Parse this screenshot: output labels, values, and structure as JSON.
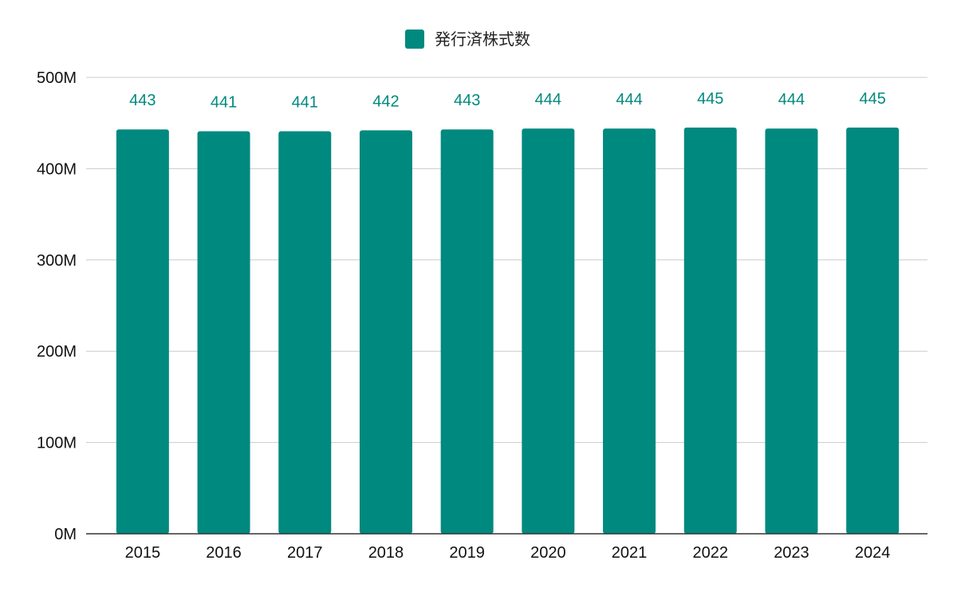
{
  "chart_data": {
    "type": "bar",
    "categories": [
      "2015",
      "2016",
      "2017",
      "2018",
      "2019",
      "2020",
      "2021",
      "2022",
      "2023",
      "2024"
    ],
    "series": [
      {
        "name": "発行済株式数",
        "values": [
          443,
          441,
          441,
          442,
          443,
          444,
          444,
          445,
          444,
          445
        ],
        "data_labels": [
          "443",
          "441",
          "441",
          "442",
          "443",
          "444",
          "444",
          "445",
          "444",
          "445"
        ],
        "color": "#00897f",
        "label_color": "#00897f"
      }
    ],
    "unit_multiplier": 1000000,
    "ylim": [
      0,
      500
    ],
    "y_ticks": [
      0,
      100,
      200,
      300,
      400,
      500
    ],
    "y_tick_labels": [
      "0M",
      "100M",
      "200M",
      "300M",
      "400M",
      "500M"
    ],
    "legend": {
      "position": "top-center",
      "label": "発行済株式数"
    },
    "grid": true,
    "title": "",
    "xlabel": "",
    "ylabel": ""
  }
}
